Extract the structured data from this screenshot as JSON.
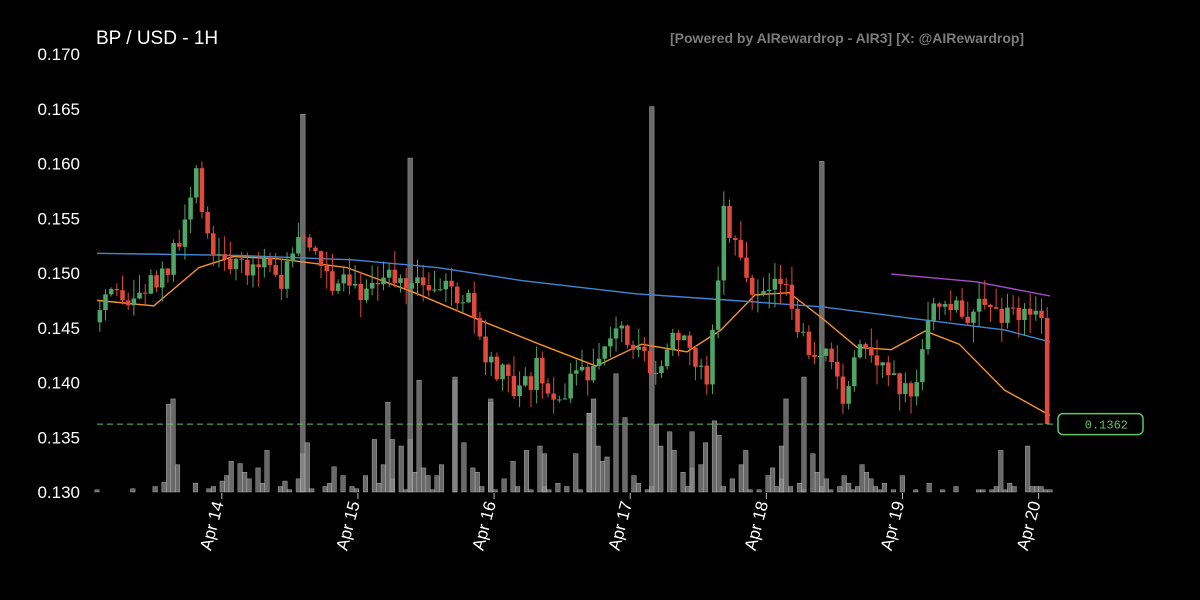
{
  "chart_data": {
    "type": "candlestick",
    "title": "BP / USD - 1H",
    "credit": "[Powered by AIRewardrop - AIR3] [X: @AIRewardrop]",
    "ylim": [
      0.13,
      0.17
    ],
    "yticks": [
      "0.130",
      "0.135",
      "0.140",
      "0.145",
      "0.150",
      "0.155",
      "0.160",
      "0.165",
      "0.170"
    ],
    "xticks": [
      "Apr 14",
      "Apr 15",
      "Apr 16",
      "Apr 17",
      "Apr 18",
      "Apr 19",
      "Apr 20"
    ],
    "x_range_hours": [
      0,
      168
    ],
    "last_price": 0.1362,
    "last_price_label": "0.1362",
    "grid": false,
    "colors": {
      "up": "#4fa565",
      "down": "#e2493c",
      "volume": "#8c8c8c",
      "ma_short": "#f5932a",
      "ma_mid": "#3f86d6",
      "ma_long": "#a24ec9",
      "last_price": "#62c462",
      "text": "#ffffff",
      "credit": "#7c7c7c"
    },
    "series": [
      {
        "type": "ohlc",
        "anchors": [
          [
            0,
            0.1455
          ],
          [
            3,
            0.1475
          ],
          [
            6,
            0.147
          ],
          [
            9,
            0.1485
          ],
          [
            12,
            0.1495
          ],
          [
            15,
            0.1525
          ],
          [
            18,
            0.1585
          ],
          [
            21,
            0.152
          ],
          [
            24,
            0.151
          ],
          [
            27,
            0.1495
          ],
          [
            30,
            0.152
          ],
          [
            33,
            0.149
          ],
          [
            36,
            0.1535
          ],
          [
            39,
            0.1515
          ],
          [
            42,
            0.1495
          ],
          [
            45,
            0.15
          ],
          [
            48,
            0.148
          ],
          [
            51,
            0.1505
          ],
          [
            54,
            0.1485
          ],
          [
            57,
            0.15
          ],
          [
            60,
            0.149
          ],
          [
            63,
            0.148
          ],
          [
            66,
            0.1475
          ],
          [
            69,
            0.1415
          ],
          [
            72,
            0.1405
          ],
          [
            75,
            0.1385
          ],
          [
            78,
            0.141
          ],
          [
            81,
            0.138
          ],
          [
            84,
            0.14
          ],
          [
            87,
            0.1405
          ],
          [
            90,
            0.1445
          ],
          [
            93,
            0.1455
          ],
          [
            96,
            0.143
          ],
          [
            99,
            0.1415
          ],
          [
            102,
            0.1445
          ],
          [
            105,
            0.1425
          ],
          [
            108,
            0.1405
          ],
          [
            111,
            0.1555
          ],
          [
            114,
            0.151
          ],
          [
            117,
            0.148
          ],
          [
            120,
            0.149
          ],
          [
            123,
            0.1475
          ],
          [
            126,
            0.1415
          ],
          [
            129,
            0.142
          ],
          [
            132,
            0.1385
          ],
          [
            135,
            0.1445
          ],
          [
            138,
            0.1425
          ],
          [
            141,
            0.14
          ],
          [
            144,
            0.1385
          ],
          [
            147,
            0.1465
          ]
        ]
      },
      {
        "type": "ma",
        "name": "ma_short",
        "points": [
          [
            0,
            0.1475
          ],
          [
            10,
            0.147
          ],
          [
            18,
            0.1505
          ],
          [
            24,
            0.1515
          ],
          [
            32,
            0.1513
          ],
          [
            44,
            0.1505
          ],
          [
            56,
            0.1482
          ],
          [
            66,
            0.146
          ],
          [
            78,
            0.1435
          ],
          [
            88,
            0.1415
          ],
          [
            96,
            0.1435
          ],
          [
            104,
            0.1428
          ],
          [
            110,
            0.1448
          ],
          [
            116,
            0.148
          ],
          [
            122,
            0.1482
          ],
          [
            128,
            0.1458
          ],
          [
            134,
            0.1432
          ],
          [
            140,
            0.143
          ],
          [
            146,
            0.1447
          ],
          [
            152,
            0.1435
          ],
          [
            160,
            0.1393
          ],
          [
            168,
            0.137
          ]
        ]
      },
      {
        "type": "ma",
        "name": "ma_mid",
        "points": [
          [
            0,
            0.1518
          ],
          [
            25,
            0.1516
          ],
          [
            45,
            0.1512
          ],
          [
            60,
            0.1505
          ],
          [
            75,
            0.1493
          ],
          [
            95,
            0.1481
          ],
          [
            112,
            0.1475
          ],
          [
            128,
            0.1469
          ],
          [
            143,
            0.1459
          ],
          [
            160,
            0.1448
          ],
          [
            168,
            0.1437
          ]
        ]
      },
      {
        "type": "ma",
        "name": "ma_long",
        "points": [
          [
            140,
            0.1499
          ],
          [
            155,
            0.1492
          ],
          [
            168,
            0.1479
          ]
        ]
      },
      {
        "type": "volume",
        "baseline": 0.13,
        "values": [
          [
            0,
            0.1302
          ],
          [
            8,
            0.1303
          ],
          [
            13,
            0.1305
          ],
          [
            15,
            0.1309
          ],
          [
            16,
            0.138
          ],
          [
            18,
            0.1325
          ],
          [
            22,
            0.1308
          ],
          [
            25,
            0.1303
          ],
          [
            28,
            0.131
          ],
          [
            29,
            0.1315
          ],
          [
            30,
            0.1328
          ],
          [
            32,
            0.1326
          ],
          [
            33,
            0.1318
          ],
          [
            34,
            0.1312
          ],
          [
            36,
            0.1322
          ],
          [
            37,
            0.1308
          ],
          [
            38,
            0.1338
          ],
          [
            41,
            0.1305
          ],
          [
            43,
            0.1302
          ],
          [
            45,
            0.1312
          ],
          [
            46,
            0.1335
          ],
          [
            48,
            0.1303
          ],
          [
            51,
            0.1305
          ],
          [
            52,
            0.1308
          ],
          [
            53,
            0.1323
          ],
          [
            55,
            0.1315
          ],
          [
            57,
            0.1305
          ],
          [
            58,
            0.1303
          ],
          [
            60,
            0.1315
          ],
          [
            62,
            0.1348
          ],
          [
            63,
            0.1308
          ],
          [
            64,
            0.1325
          ],
          [
            66,
            0.1312
          ],
          [
            68,
            0.1342
          ],
          [
            69,
            0.1302
          ],
          [
            70,
            0.1348
          ],
          [
            71,
            0.1318
          ],
          [
            72,
            0.1402
          ],
          [
            73,
            0.1322
          ],
          [
            74,
            0.1315
          ],
          [
            75,
            0.1302
          ],
          [
            76,
            0.1315
          ],
          [
            77,
            0.1325
          ],
          [
            80,
            0.1402
          ],
          [
            82,
            0.1345
          ],
          [
            84,
            0.1322
          ],
          [
            85,
            0.1318
          ],
          [
            86,
            0.1305
          ],
          [
            88,
            0.1382
          ],
          [
            89,
            0.1302
          ],
          [
            91,
            0.1312
          ],
          [
            93,
            0.1328
          ],
          [
            94,
            0.1305
          ],
          [
            96,
            0.1338
          ],
          [
            97,
            0.1302
          ],
          [
            99,
            0.1342
          ],
          [
            100,
            0.1305
          ],
          [
            101,
            0.1302
          ],
          [
            103,
            0.1308
          ],
          [
            105,
            0.1305
          ],
          [
            107,
            0.1335
          ],
          [
            108,
            0.1302
          ],
          [
            110,
            0.1372
          ],
          [
            111,
            0.1385
          ],
          [
            112,
            0.1342
          ],
          [
            113,
            0.1328
          ],
          [
            114,
            0.1332
          ],
          [
            116,
            0.1408
          ],
          [
            118,
            0.1368
          ],
          [
            120,
            0.1315
          ],
          [
            121,
            0.1308
          ],
          [
            123,
            0.1302
          ],
          [
            124,
            0.1305
          ],
          [
            125,
            0.1362
          ],
          [
            126,
            0.1342
          ],
          [
            128,
            0.1355
          ],
          [
            129,
            0.1338
          ],
          [
            131,
            0.1318
          ],
          [
            132,
            0.1305
          ],
          [
            133,
            0.1322
          ],
          [
            135,
            0.1325
          ],
          [
            136,
            0.1345
          ],
          [
            138,
            0.1365
          ],
          [
            139,
            0.1352
          ],
          [
            140,
            0.1305
          ],
          [
            142,
            0.1312
          ],
          [
            144,
            0.1325
          ],
          [
            145,
            0.1338
          ],
          [
            146,
            0.1302
          ],
          [
            148,
            0.1302
          ],
          [
            150,
            0.1315
          ],
          [
            151,
            0.1322
          ],
          [
            152,
            0.1305
          ],
          [
            153,
            0.1312
          ],
          [
            155,
            0.1305
          ],
          [
            157,
            0.1308
          ],
          [
            158,
            0.1302
          ],
          [
            160,
            0.1335
          ],
          [
            161,
            0.1318
          ],
          [
            162,
            0.1305
          ],
          [
            163,
            0.1312
          ],
          [
            164,
            0.1302
          ],
          [
            166,
            0.1305
          ],
          [
            167,
            0.1315
          ],
          [
            168,
            0.1308
          ],
          [
            169,
            0.1302
          ],
          [
            170,
            0.1305
          ],
          [
            171,
            0.1325
          ],
          [
            172,
            0.1318
          ],
          [
            173,
            0.1312
          ],
          [
            174,
            0.1305
          ],
          [
            175,
            0.1302
          ],
          [
            176,
            0.1308
          ],
          [
            178,
            0.1302
          ],
          [
            180,
            0.1315
          ],
          [
            183,
            0.1302
          ],
          [
            186,
            0.1308
          ],
          [
            189,
            0.1302
          ],
          [
            192,
            0.1305
          ],
          [
            197,
            0.1302
          ],
          [
            198,
            0.1302
          ],
          [
            200,
            0.1302
          ],
          [
            201,
            0.1305
          ],
          [
            202,
            0.1338
          ],
          [
            203,
            0.1302
          ],
          [
            204,
            0.1308
          ],
          [
            205,
            0.1305
          ],
          [
            208,
            0.1342
          ],
          [
            209,
            0.1305
          ],
          [
            210,
            0.1305
          ],
          [
            211,
            0.1305
          ],
          [
            212,
            0.1302
          ],
          [
            213,
            0.1302
          ]
        ]
      },
      {
        "type": "volume_spikes",
        "values": [
          [
            17,
            0.1385
          ],
          [
            26,
            0.1305
          ],
          [
            42,
            0.131
          ],
          [
            46,
            0.1645
          ],
          [
            47,
            0.1345
          ],
          [
            65,
            0.1382
          ],
          [
            66,
            0.1348
          ],
          [
            70,
            0.1605
          ],
          [
            80,
            0.1405
          ],
          [
            88,
            0.1385
          ],
          [
            100,
            0.1335
          ],
          [
            110,
            0.1372
          ],
          [
            124,
            0.1652
          ],
          [
            133,
            0.1355
          ],
          [
            153,
            0.1342
          ],
          [
            154,
            0.1385
          ],
          [
            158,
            0.1405
          ],
          [
            162,
            0.1602
          ]
        ]
      }
    ]
  }
}
